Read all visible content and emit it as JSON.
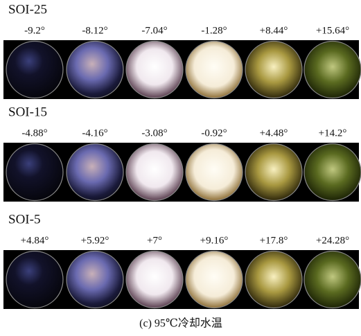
{
  "rows": [
    {
      "label": "SOI-25",
      "angles": [
        "-9.2°",
        "-8.12°",
        "-7.04°",
        "-1.28°",
        "+8.44°",
        "+15.64°"
      ]
    },
    {
      "label": "SOI-15",
      "angles": [
        "-4.88°",
        "-4.16°",
        "-3.08°",
        "-0.92°",
        "+4.48°",
        "+14.2°"
      ]
    },
    {
      "label": "SOI-5",
      "angles": [
        "+4.84°",
        "+5.92°",
        "+7°",
        "+9.16°",
        "+17.8°",
        "+24.28°"
      ]
    }
  ],
  "caption": "(c) 95℃冷却水温"
}
